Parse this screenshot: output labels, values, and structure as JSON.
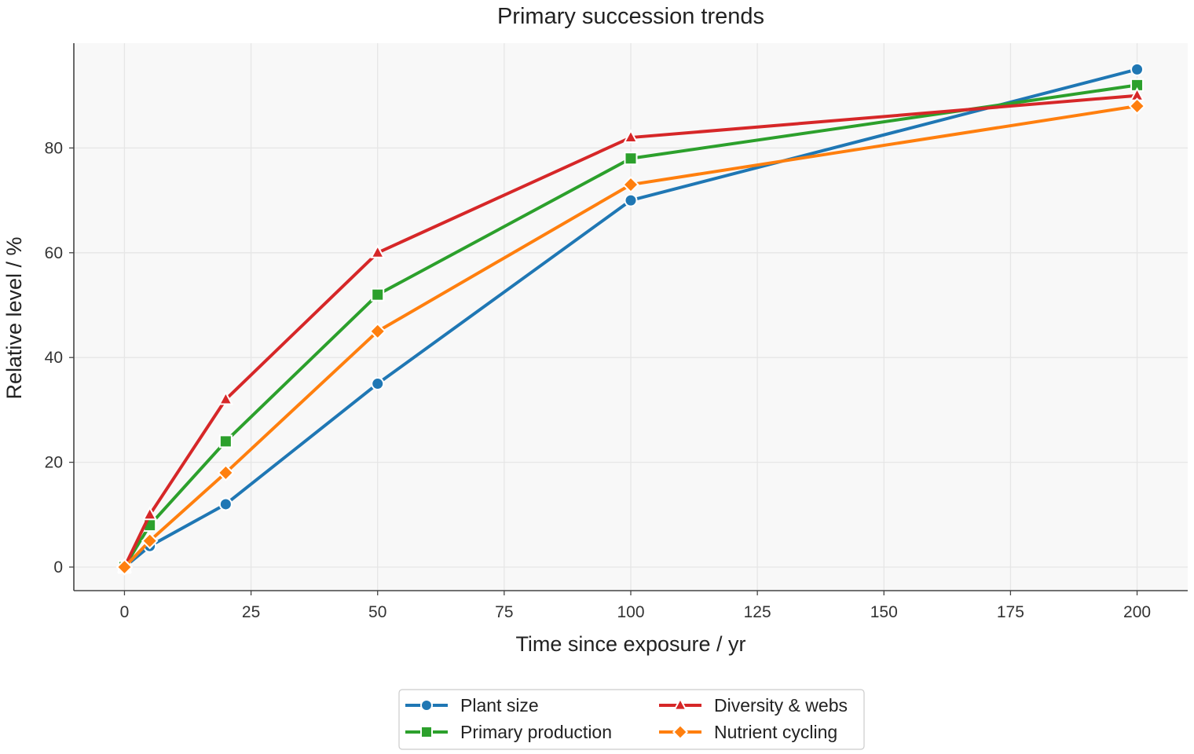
{
  "chart_data": {
    "type": "line",
    "title": "Primary succession trends",
    "xlabel": "Time since exposure / yr",
    "ylabel": "Relative level / %",
    "x": [
      0,
      5,
      20,
      50,
      100,
      200
    ],
    "xlim": [
      -10,
      210
    ],
    "ylim": [
      -4.5,
      100
    ],
    "xticks": [
      0,
      25,
      50,
      75,
      100,
      125,
      150,
      175,
      200
    ],
    "yticks": [
      0,
      20,
      40,
      60,
      80
    ],
    "grid": true,
    "legend_position": "bottom-center",
    "series": [
      {
        "name": "Plant size",
        "values": [
          0,
          4,
          12,
          35,
          70,
          95
        ],
        "color": "#1f77b4",
        "marker": "circle"
      },
      {
        "name": "Primary production",
        "values": [
          0,
          8,
          24,
          52,
          78,
          92
        ],
        "color": "#2ca02c",
        "marker": "square"
      },
      {
        "name": "Diversity & webs",
        "values": [
          0,
          10,
          32,
          60,
          82,
          90
        ],
        "color": "#d62728",
        "marker": "triangle"
      },
      {
        "name": "Nutrient cycling",
        "values": [
          0,
          5,
          18,
          45,
          73,
          88
        ],
        "color": "#ff7f0e",
        "marker": "diamond"
      }
    ]
  }
}
